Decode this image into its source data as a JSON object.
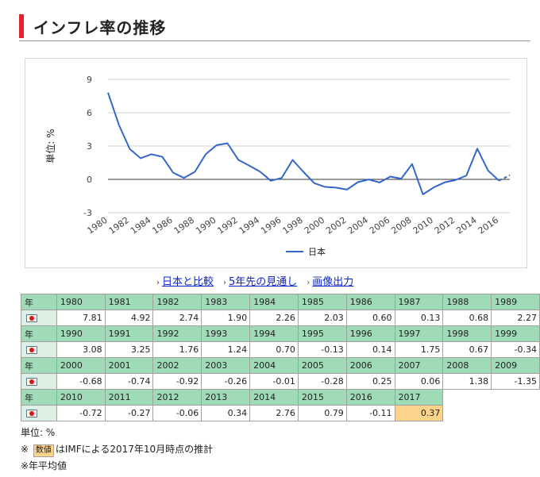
{
  "page": {
    "title": "インフレ率の推移"
  },
  "chart_data": {
    "type": "line",
    "ylabel": "単位: %",
    "ylim": [
      -4,
      10
    ],
    "yticks": [
      9,
      6,
      3,
      0,
      -3
    ],
    "xticks": [
      "1980",
      "1982",
      "1984",
      "1986",
      "1988",
      "1990",
      "1992",
      "1994",
      "1996",
      "1998",
      "2000",
      "2002",
      "2004",
      "2006",
      "2008",
      "2010",
      "2012",
      "2014",
      "2016"
    ],
    "grid": true,
    "legend": "bottom",
    "series": [
      {
        "name": "日本",
        "color": "#3366cc",
        "x": [
          1980,
          1981,
          1982,
          1983,
          1984,
          1985,
          1986,
          1987,
          1988,
          1989,
          1990,
          1991,
          1992,
          1993,
          1994,
          1995,
          1996,
          1997,
          1998,
          1999,
          2000,
          2001,
          2002,
          2003,
          2004,
          2005,
          2006,
          2007,
          2008,
          2009,
          2010,
          2011,
          2012,
          2013,
          2014,
          2015,
          2016,
          2017
        ],
        "values": [
          7.81,
          4.92,
          2.74,
          1.9,
          2.26,
          2.03,
          0.6,
          0.13,
          0.68,
          2.27,
          3.08,
          3.25,
          1.76,
          1.24,
          0.7,
          -0.13,
          0.14,
          1.75,
          0.67,
          -0.34,
          -0.68,
          -0.74,
          -0.92,
          -0.26,
          -0.01,
          -0.28,
          0.25,
          0.06,
          1.38,
          -1.35,
          -0.72,
          -0.27,
          -0.06,
          0.34,
          2.76,
          0.79,
          -0.11,
          0.37
        ],
        "estimate_from": 2017
      }
    ]
  },
  "links": [
    {
      "label": "日本と比較"
    },
    {
      "label": "5年先の見通し"
    },
    {
      "label": "画像出力"
    }
  ],
  "table": {
    "year_caption": "年",
    "flag_icon": "japan-flag-icon",
    "rows": [
      {
        "years": [
          "1980",
          "1981",
          "1982",
          "1983",
          "1984",
          "1985",
          "1986",
          "1987",
          "1988",
          "1989"
        ],
        "values": [
          "7.81",
          "4.92",
          "2.74",
          "1.90",
          "2.26",
          "2.03",
          "0.60",
          "0.13",
          "0.68",
          "2.27"
        ]
      },
      {
        "years": [
          "1990",
          "1991",
          "1992",
          "1993",
          "1994",
          "1995",
          "1996",
          "1997",
          "1998",
          "1999"
        ],
        "values": [
          "3.08",
          "3.25",
          "1.76",
          "1.24",
          "0.70",
          "-0.13",
          "0.14",
          "1.75",
          "0.67",
          "-0.34"
        ]
      },
      {
        "years": [
          "2000",
          "2001",
          "2002",
          "2003",
          "2004",
          "2005",
          "2006",
          "2007",
          "2008",
          "2009"
        ],
        "values": [
          "-0.68",
          "-0.74",
          "-0.92",
          "-0.26",
          "-0.01",
          "-0.28",
          "0.25",
          "0.06",
          "1.38",
          "-1.35"
        ]
      },
      {
        "years": [
          "2010",
          "2011",
          "2012",
          "2013",
          "2014",
          "2015",
          "2016",
          "2017"
        ],
        "values": [
          "-0.72",
          "-0.27",
          "-0.06",
          "0.34",
          "2.76",
          "0.79",
          "-0.11",
          "0.37"
        ]
      }
    ],
    "estimate_color": "#fcd38a"
  },
  "notes": {
    "unit": "単位: %",
    "estimate_prefix": "※",
    "estimate_badge": "数値",
    "estimate_text": "はIMFによる2017年10月時点の推計",
    "average": "※年平均値"
  }
}
